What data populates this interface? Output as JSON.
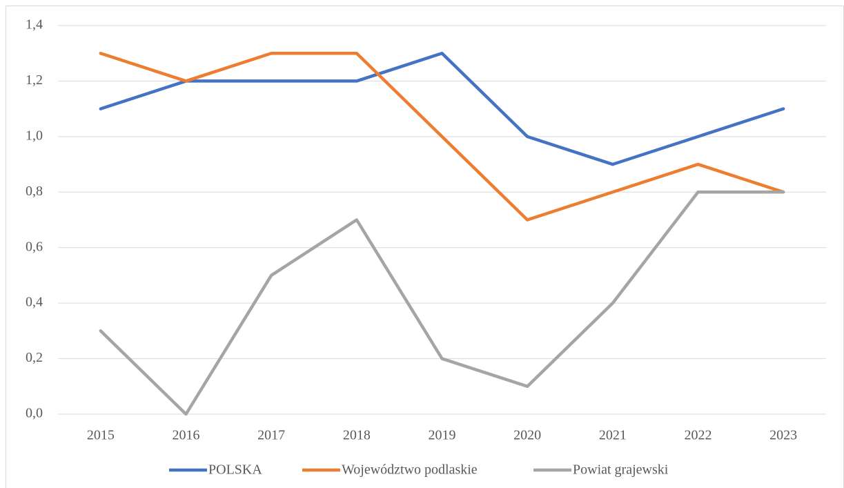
{
  "chart_data": {
    "type": "line",
    "categories": [
      "2015",
      "2016",
      "2017",
      "2018",
      "2019",
      "2020",
      "2021",
      "2022",
      "2023"
    ],
    "series": [
      {
        "name": "POLSKA",
        "color": "#4472c4",
        "values": [
          1.1,
          1.2,
          1.2,
          1.2,
          1.3,
          1.0,
          0.9,
          1.0,
          1.1
        ]
      },
      {
        "name": "Województwo podlaskie",
        "color": "#ed7d31",
        "values": [
          1.3,
          1.2,
          1.3,
          1.3,
          1.0,
          0.7,
          0.8,
          0.9,
          0.8
        ]
      },
      {
        "name": "Powiat grajewski",
        "color": "#a5a5a5",
        "values": [
          0.3,
          0.0,
          0.5,
          0.7,
          0.2,
          0.1,
          0.4,
          0.8,
          0.8
        ]
      }
    ],
    "ylim": [
      0,
      1.4
    ],
    "yticks": [
      {
        "value": 0,
        "label": "0,0"
      },
      {
        "value": 0.2,
        "label": "0,2"
      },
      {
        "value": 0.4,
        "label": "0,4"
      },
      {
        "value": 0.6,
        "label": "0,6"
      },
      {
        "value": 0.8,
        "label": "0,8"
      },
      {
        "value": 1.0,
        "label": "1,0"
      },
      {
        "value": 1.2,
        "label": "1,2"
      },
      {
        "value": 1.4,
        "label": "1,4"
      }
    ],
    "grid": true,
    "legend": "bottom"
  }
}
